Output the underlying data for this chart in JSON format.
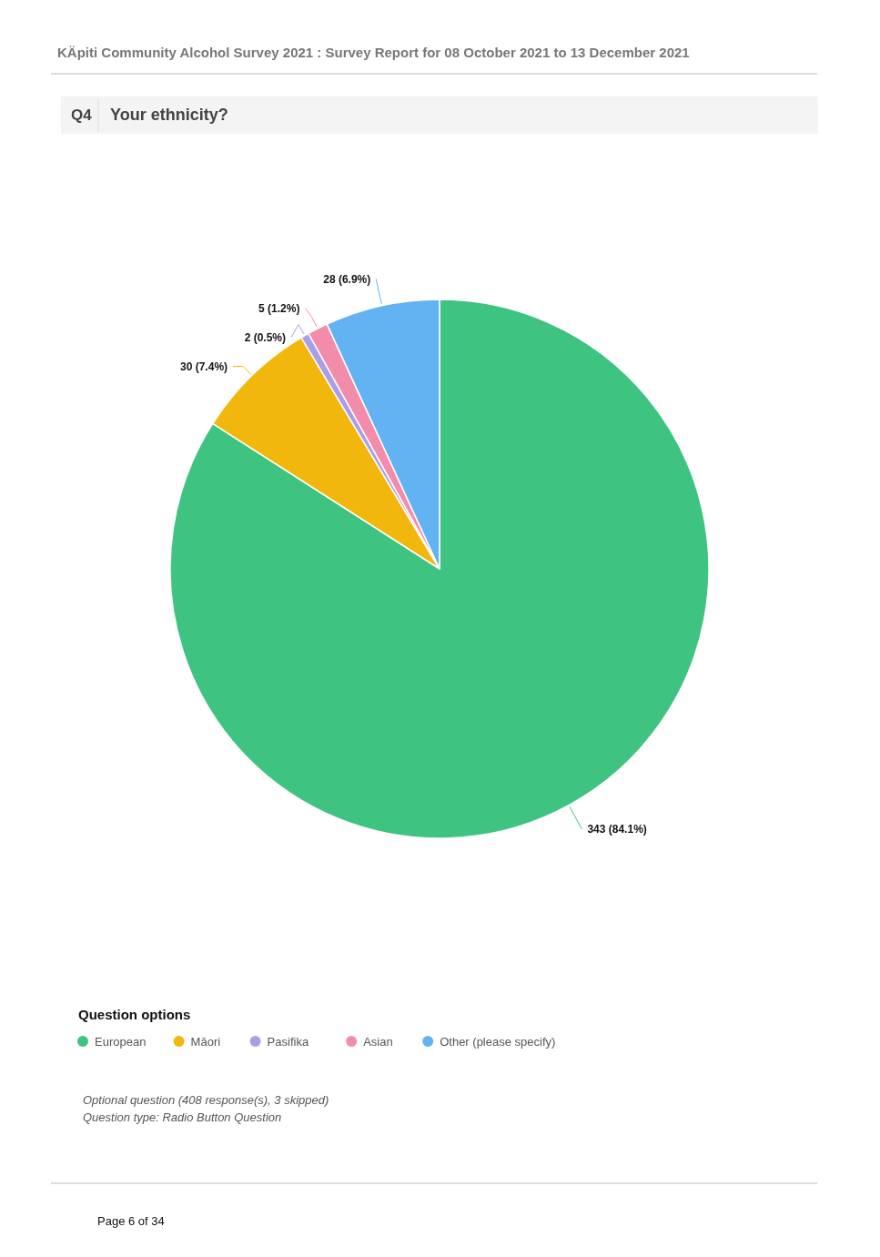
{
  "chart_data": {
    "type": "pie",
    "title": "KÄpiti Community Alcohol Survey 2021 : Survey Report for 08 October 2021 to 13 December 2021",
    "subtitle": "Your ethnicity?",
    "categories": [
      "European",
      "Māori",
      "Pasifika",
      "Asian",
      "Other (please specify)"
    ],
    "values": [
      343,
      30,
      2,
      5,
      28
    ],
    "colors": [
      "#3fc380",
      "#f2b70d",
      "#a99ee8",
      "#f28cab",
      "#63b3f2"
    ],
    "value_labels": [
      "343 (84.1%)",
      "30 (7.4%)",
      "2 (0.5%)",
      "5 (1.2%)",
      "28 (6.9%)"
    ],
    "legend": "bottom",
    "legend_title": "Question options",
    "annotations": [
      "Q4",
      "Optional question (408 response(s), 3 skipped)",
      "Question type: Radio Button Question",
      "Page 6 of 34"
    ]
  }
}
